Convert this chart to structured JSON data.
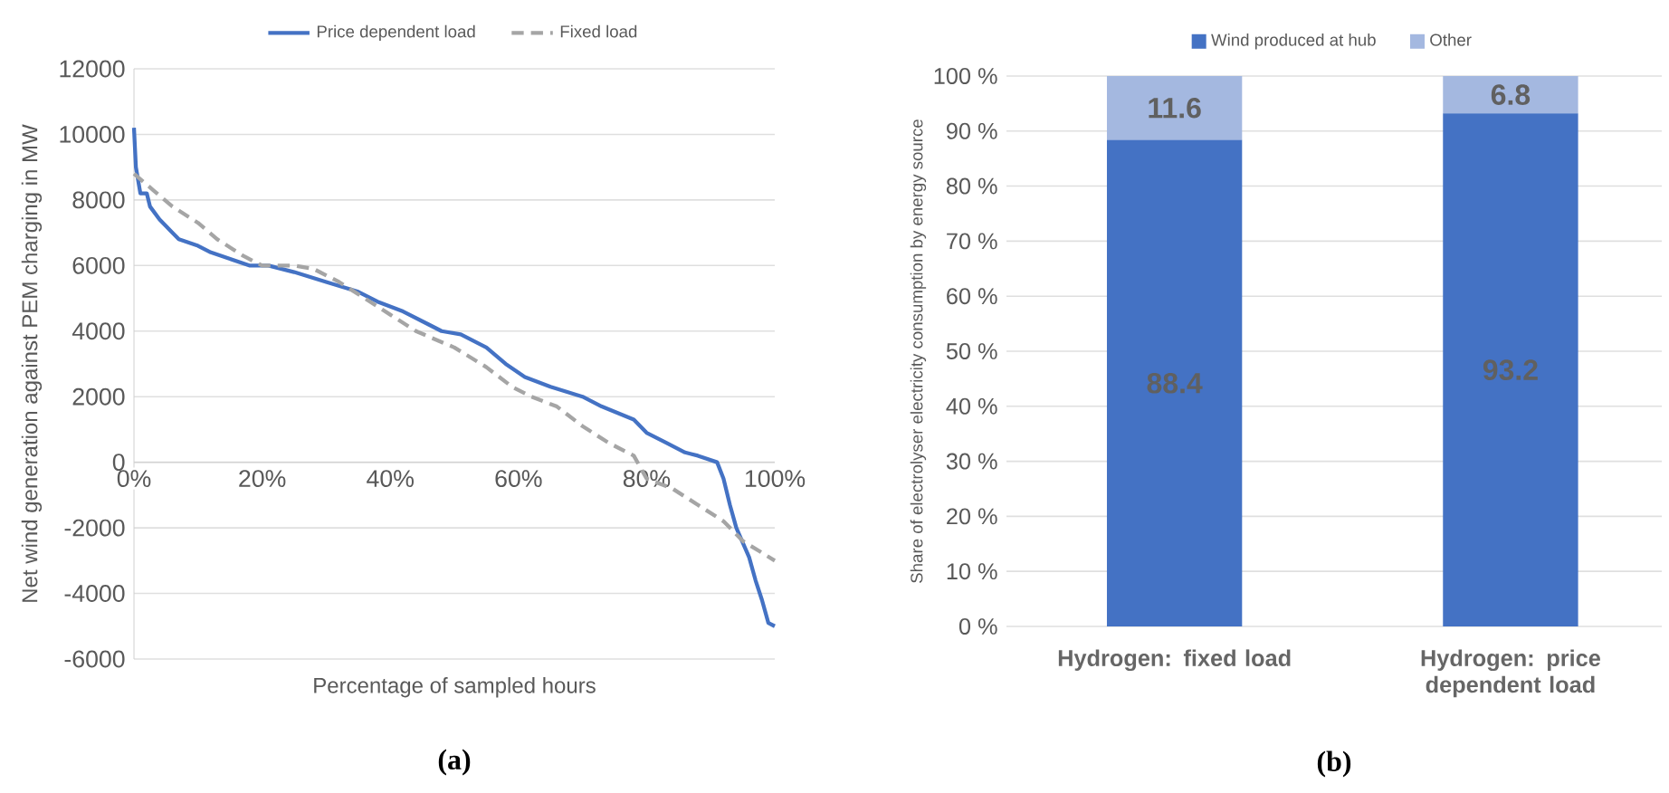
{
  "chart_data": [
    {
      "type": "line",
      "xlabel": "Percentage of sampled hours",
      "ylabel": "Net wind generation against PEM charging in MW",
      "xlim": [
        0,
        100
      ],
      "xticks": [
        {
          "value": 0,
          "label": "0%"
        },
        {
          "value": 20,
          "label": "20%"
        },
        {
          "value": 40,
          "label": "40%"
        },
        {
          "value": 60,
          "label": "60%"
        },
        {
          "value": 80,
          "label": "80%"
        },
        {
          "value": 100,
          "label": "100%"
        }
      ],
      "ylim": [
        -6000,
        12000
      ],
      "yticks": [
        -6000,
        -4000,
        -2000,
        0,
        2000,
        4000,
        6000,
        8000,
        10000,
        12000
      ],
      "grid": "y",
      "legend": "top",
      "marker": "none",
      "annotations": [
        "(a)"
      ],
      "series": [
        {
          "name": "Price dependent load",
          "color": "#4472c4",
          "line_style": "solid",
          "x": [
            0,
            0.3,
            1,
            2,
            2.5,
            4,
            5,
            7,
            10,
            12,
            15,
            18,
            21,
            25,
            30,
            35,
            38,
            42,
            46,
            48,
            51,
            55,
            58,
            61,
            65,
            70,
            73,
            78,
            80,
            83,
            86,
            88,
            91,
            92,
            93,
            94,
            96,
            97,
            98,
            99,
            100
          ],
          "values": [
            10200,
            9000,
            8200,
            8200,
            7800,
            7400,
            7200,
            6800,
            6600,
            6400,
            6200,
            6000,
            6000,
            5800,
            5500,
            5200,
            4900,
            4600,
            4200,
            4000,
            3900,
            3500,
            3000,
            2600,
            2300,
            2000,
            1700,
            1300,
            900,
            600,
            300,
            200,
            0,
            -500,
            -1300,
            -2000,
            -2900,
            -3600,
            -4200,
            -4900,
            -5000
          ]
        },
        {
          "name": "Fixed load",
          "color": "#a5a5a5",
          "line_style": "dashed",
          "x": [
            0,
            3,
            6,
            10,
            13,
            17,
            20,
            25,
            28,
            32,
            36,
            40,
            44,
            50,
            55,
            59,
            62,
            66,
            70,
            74,
            78,
            80,
            84,
            88,
            92,
            95,
            100
          ],
          "values": [
            8800,
            8300,
            7800,
            7300,
            6800,
            6300,
            6000,
            6000,
            5900,
            5500,
            5000,
            4500,
            4000,
            3500,
            2900,
            2300,
            2000,
            1700,
            1100,
            600,
            200,
            -500,
            -800,
            -1300,
            -1800,
            -2400,
            -3000
          ]
        }
      ]
    },
    {
      "type": "bar",
      "stacked": true,
      "ylabel": "Share of electrolyser electricity consumption by energy source",
      "categories": [
        "Hydrogen: fixed load",
        "Hydrogen: price dependent load"
      ],
      "ylim": [
        0,
        100
      ],
      "yticks": [
        {
          "value": 0,
          "label": "0 %"
        },
        {
          "value": 10,
          "label": "10 %"
        },
        {
          "value": 20,
          "label": "20 %"
        },
        {
          "value": 30,
          "label": "30 %"
        },
        {
          "value": 40,
          "label": "40 %"
        },
        {
          "value": 50,
          "label": "50 %"
        },
        {
          "value": 60,
          "label": "60 %"
        },
        {
          "value": 70,
          "label": "70 %"
        },
        {
          "value": 80,
          "label": "80 %"
        },
        {
          "value": 90,
          "label": "90 %"
        },
        {
          "value": 100,
          "label": "100 %"
        }
      ],
      "grid": "y",
      "legend": "top",
      "data_labels": true,
      "annotations": [
        "(b)"
      ],
      "series": [
        {
          "name": "Wind produced at hub",
          "color": "#4472c4",
          "values": [
            88.4,
            93.2
          ]
        },
        {
          "name": "Other",
          "color": "#a4b8e0",
          "values": [
            11.6,
            6.8
          ]
        }
      ]
    }
  ]
}
